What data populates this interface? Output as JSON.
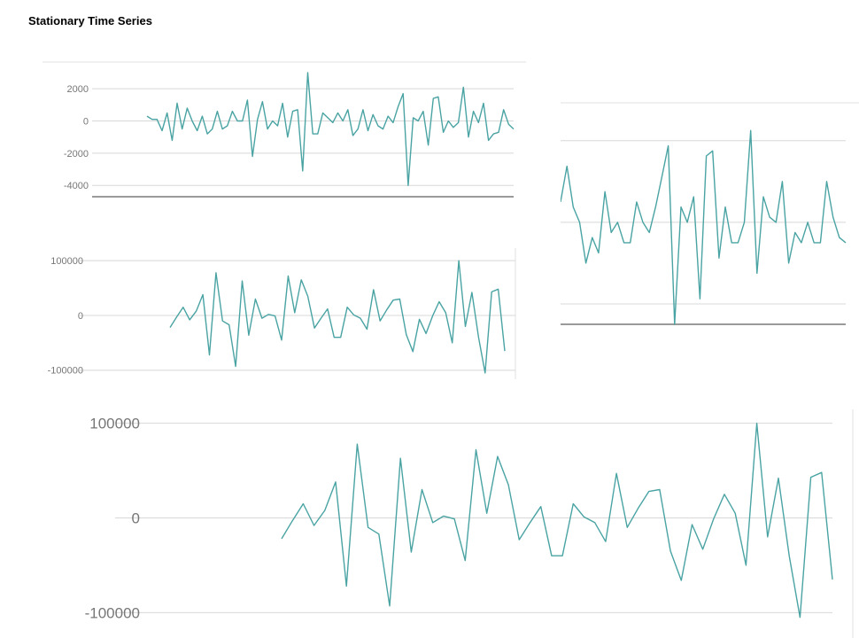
{
  "title": "Stationary Time Series",
  "colors": {
    "line": "#4aa3a3",
    "grid": "#d8d8d8"
  },
  "chart_data": [
    {
      "id": "panel-a",
      "type": "line",
      "ylim": [
        -4700,
        3000
      ],
      "ticks": [
        2000,
        0,
        -2000,
        -4000
      ],
      "tick_labels": [
        "2000",
        "0",
        "-2000",
        "-4000"
      ],
      "grid": true,
      "series": [
        {
          "values": [
            300,
            100,
            100,
            -600,
            500,
            -1200,
            1100,
            -500,
            800,
            0,
            -600,
            300,
            -800,
            -500,
            600,
            -500,
            -300,
            600,
            0,
            0,
            1300,
            -2200,
            100,
            1200,
            -500,
            0,
            -300,
            1100,
            -1000,
            600,
            700,
            -3100,
            3000,
            -800,
            -800,
            500,
            200,
            -100,
            500,
            0,
            700,
            -900,
            -500,
            700,
            -600,
            400,
            -300,
            -500,
            300,
            -100,
            900,
            1700,
            -4000,
            200,
            0,
            600,
            -1500,
            1400,
            1500,
            -700,
            0,
            -400,
            -100,
            2100,
            -1000,
            600,
            -100,
            1100,
            -1200,
            -800,
            -700,
            700,
            -200,
            -500
          ]
        }
      ]
    },
    {
      "id": "panel-b",
      "type": "line",
      "ylim": [
        -110000,
        110000
      ],
      "ticks": [
        100000,
        0,
        -100000
      ],
      "tick_labels": [
        "100000",
        "0",
        "-100000"
      ],
      "grid": true,
      "series": [
        {
          "values": [
            -22000,
            -3000,
            15000,
            -8000,
            8000,
            38000,
            -72000,
            78000,
            -10000,
            -17000,
            -93000,
            63000,
            -36000,
            30000,
            -5000,
            2000,
            -1000,
            -45000,
            72000,
            5000,
            65000,
            35000,
            -23000,
            -5000,
            12000,
            -40000,
            -40000,
            15000,
            1000,
            -5000,
            -25000,
            47000,
            -10000,
            10000,
            28000,
            30000,
            -35000,
            -66000,
            -7000,
            -33000,
            -1000,
            25000,
            5000,
            -50000,
            100000,
            -20000,
            42000,
            -40000,
            -105000,
            43000,
            48000,
            -65000
          ]
        }
      ]
    },
    {
      "id": "panel-c",
      "type": "line",
      "ylim": [
        -100,
        105
      ],
      "grid": true,
      "series": [
        {
          "values": [
            20,
            55,
            15,
            0,
            -40,
            -15,
            -30,
            30,
            -10,
            0,
            -20,
            -20,
            20,
            0,
            -10,
            15,
            45,
            75,
            -205,
            15,
            0,
            25,
            -75,
            65,
            70,
            -35,
            15,
            -20,
            -20,
            0,
            90,
            -50,
            25,
            5,
            0,
            40,
            -40,
            -10,
            -20,
            0,
            -20,
            -20,
            40,
            5,
            -15,
            -20
          ]
        }
      ]
    },
    {
      "id": "panel-d",
      "type": "line",
      "ylim": [
        -110000,
        110000
      ],
      "ticks": [
        100000,
        0,
        -100000
      ],
      "tick_labels": [
        "100000",
        "0",
        "-100000"
      ],
      "grid": true,
      "series": [
        {
          "values": [
            -22000,
            -3000,
            15000,
            -8000,
            8000,
            38000,
            -72000,
            78000,
            -10000,
            -17000,
            -93000,
            63000,
            -36000,
            30000,
            -5000,
            2000,
            -1000,
            -45000,
            72000,
            5000,
            65000,
            35000,
            -23000,
            -5000,
            12000,
            -40000,
            -40000,
            15000,
            1000,
            -5000,
            -25000,
            47000,
            -10000,
            10000,
            28000,
            30000,
            -35000,
            -66000,
            -7000,
            -33000,
            -1000,
            25000,
            5000,
            -50000,
            100000,
            -20000,
            42000,
            -40000,
            -105000,
            43000,
            48000,
            -65000
          ]
        }
      ]
    }
  ]
}
